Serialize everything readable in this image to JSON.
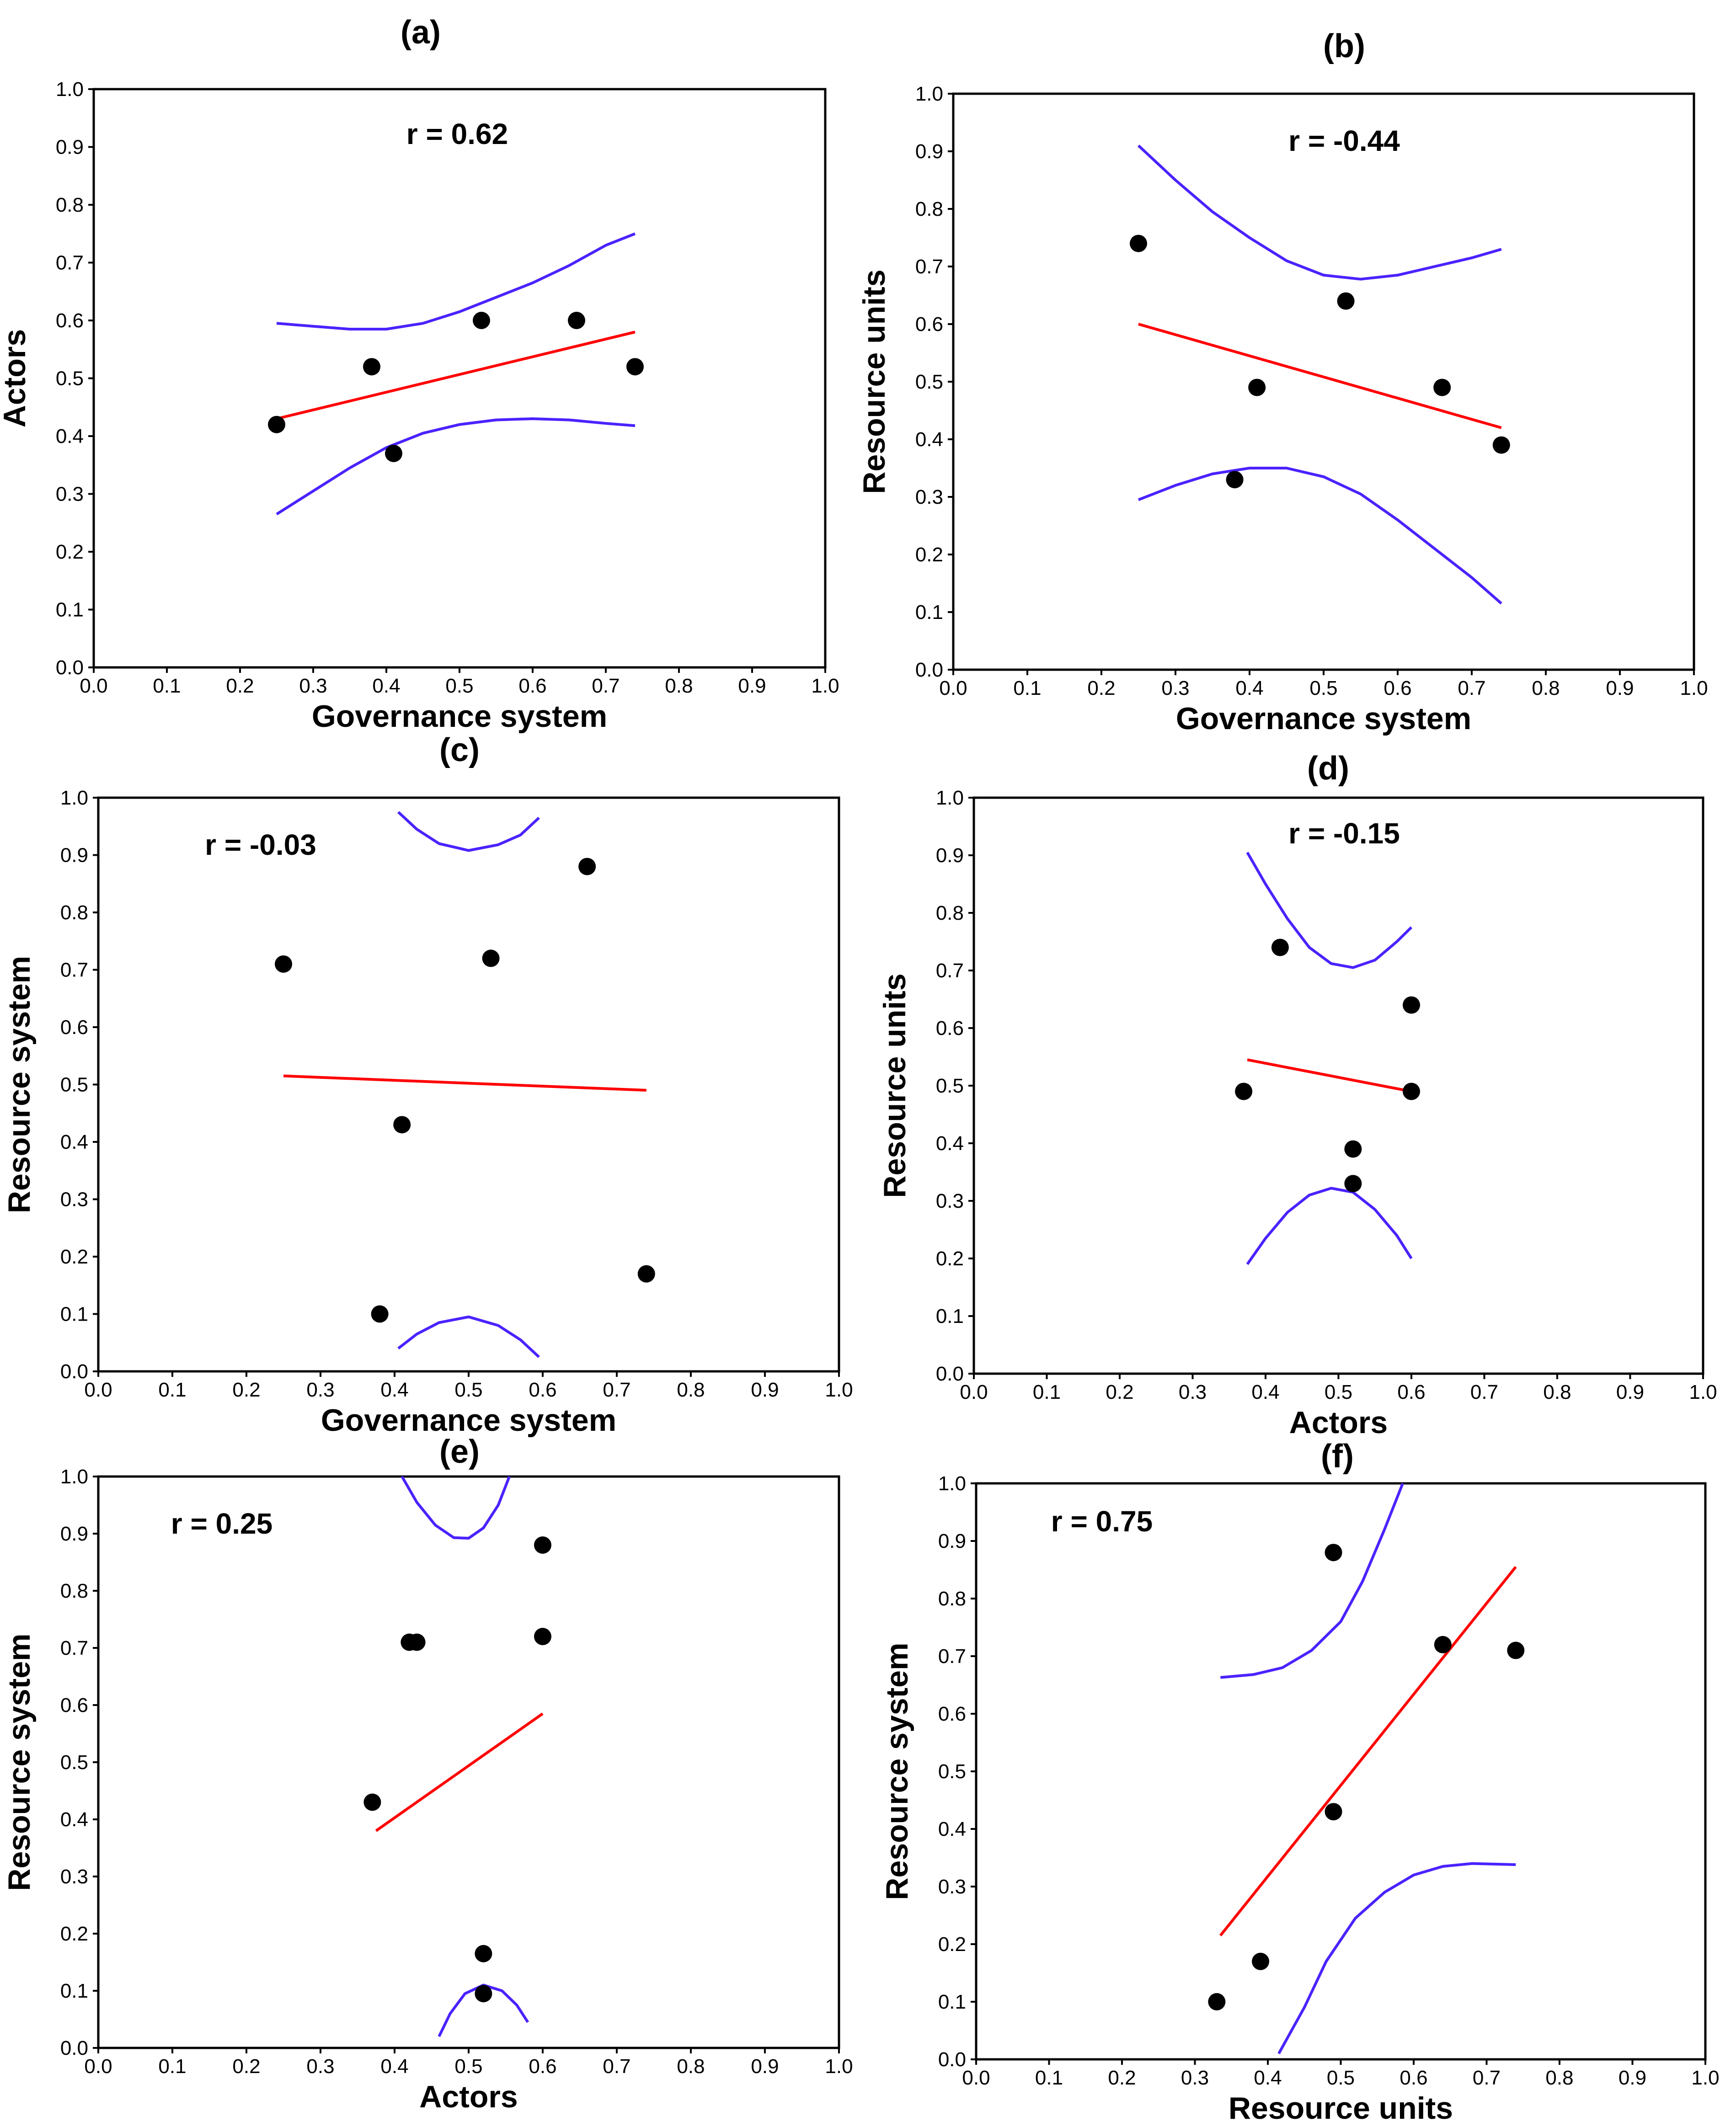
{
  "chart_data": [
    {
      "type": "scatter",
      "panel": "(a)",
      "xlabel": "Governance system",
      "ylabel": "Actors",
      "xlim": [
        0,
        1
      ],
      "ylim": [
        0,
        1
      ],
      "ticks": [
        "0.0",
        "0.1",
        "0.2",
        "0.3",
        "0.4",
        "0.5",
        "0.6",
        "0.7",
        "0.8",
        "0.9",
        "1.0"
      ],
      "r_text": "r = 0.62",
      "points": [
        [
          0.25,
          0.42
        ],
        [
          0.38,
          0.52
        ],
        [
          0.41,
          0.37
        ],
        [
          0.53,
          0.6
        ],
        [
          0.66,
          0.6
        ],
        [
          0.74,
          0.52
        ]
      ],
      "fit": [
        [
          0.25,
          0.43
        ],
        [
          0.74,
          0.58
        ]
      ],
      "ci_upper": [
        [
          0.25,
          0.595
        ],
        [
          0.3,
          0.59
        ],
        [
          0.35,
          0.585
        ],
        [
          0.4,
          0.585
        ],
        [
          0.45,
          0.595
        ],
        [
          0.5,
          0.615
        ],
        [
          0.55,
          0.64
        ],
        [
          0.6,
          0.665
        ],
        [
          0.65,
          0.695
        ],
        [
          0.7,
          0.73
        ],
        [
          0.74,
          0.75
        ]
      ],
      "ci_lower": [
        [
          0.25,
          0.265
        ],
        [
          0.3,
          0.305
        ],
        [
          0.35,
          0.345
        ],
        [
          0.4,
          0.38
        ],
        [
          0.45,
          0.405
        ],
        [
          0.5,
          0.42
        ],
        [
          0.55,
          0.428
        ],
        [
          0.6,
          0.43
        ],
        [
          0.65,
          0.428
        ],
        [
          0.7,
          0.422
        ],
        [
          0.74,
          0.418
        ]
      ]
    },
    {
      "type": "scatter",
      "panel": "(b)",
      "xlabel": "Governance system",
      "ylabel": "Resource units",
      "xlim": [
        0,
        1
      ],
      "ylim": [
        0,
        1
      ],
      "ticks": [
        "0.0",
        "0.1",
        "0.2",
        "0.3",
        "0.4",
        "0.5",
        "0.6",
        "0.7",
        "0.8",
        "0.9",
        "1.0"
      ],
      "r_text": "r = -0.44",
      "points": [
        [
          0.25,
          0.74
        ],
        [
          0.38,
          0.33
        ],
        [
          0.41,
          0.49
        ],
        [
          0.53,
          0.64
        ],
        [
          0.66,
          0.49
        ],
        [
          0.74,
          0.39
        ]
      ],
      "fit": [
        [
          0.25,
          0.6
        ],
        [
          0.74,
          0.42
        ]
      ],
      "ci_upper": [
        [
          0.25,
          0.91
        ],
        [
          0.3,
          0.85
        ],
        [
          0.35,
          0.795
        ],
        [
          0.4,
          0.75
        ],
        [
          0.45,
          0.71
        ],
        [
          0.5,
          0.685
        ],
        [
          0.55,
          0.678
        ],
        [
          0.6,
          0.685
        ],
        [
          0.65,
          0.7
        ],
        [
          0.7,
          0.715
        ],
        [
          0.74,
          0.73
        ]
      ],
      "ci_lower": [
        [
          0.25,
          0.295
        ],
        [
          0.3,
          0.32
        ],
        [
          0.35,
          0.34
        ],
        [
          0.4,
          0.35
        ],
        [
          0.45,
          0.35
        ],
        [
          0.5,
          0.335
        ],
        [
          0.55,
          0.305
        ],
        [
          0.6,
          0.26
        ],
        [
          0.65,
          0.21
        ],
        [
          0.7,
          0.16
        ],
        [
          0.74,
          0.115
        ]
      ]
    },
    {
      "type": "scatter",
      "panel": "(c)",
      "xlabel": "Governance system",
      "ylabel": "Resource system",
      "xlim": [
        0,
        1
      ],
      "ylim": [
        0,
        1
      ],
      "ticks": [
        "0.0",
        "0.1",
        "0.2",
        "0.3",
        "0.4",
        "0.5",
        "0.6",
        "0.7",
        "0.8",
        "0.9",
        "1.0"
      ],
      "r_text": "r = -0.03",
      "points": [
        [
          0.25,
          0.71
        ],
        [
          0.38,
          0.1
        ],
        [
          0.41,
          0.43
        ],
        [
          0.53,
          0.72
        ],
        [
          0.66,
          0.88
        ],
        [
          0.74,
          0.17
        ]
      ],
      "fit": [
        [
          0.25,
          0.515
        ],
        [
          0.74,
          0.49
        ]
      ],
      "ci_upper": [
        [
          0.405,
          0.975
        ],
        [
          0.43,
          0.945
        ],
        [
          0.46,
          0.92
        ],
        [
          0.5,
          0.908
        ],
        [
          0.54,
          0.918
        ],
        [
          0.57,
          0.935
        ],
        [
          0.595,
          0.965
        ]
      ],
      "ci_lower": [
        [
          0.405,
          0.04
        ],
        [
          0.43,
          0.065
        ],
        [
          0.46,
          0.085
        ],
        [
          0.5,
          0.095
        ],
        [
          0.54,
          0.08
        ],
        [
          0.57,
          0.055
        ],
        [
          0.595,
          0.025
        ]
      ]
    },
    {
      "type": "scatter",
      "panel": "(d)",
      "xlabel": "Actors",
      "ylabel": "Resource units",
      "xlim": [
        0,
        1
      ],
      "ylim": [
        0,
        1
      ],
      "ticks": [
        "0.0",
        "0.1",
        "0.2",
        "0.3",
        "0.4",
        "0.5",
        "0.6",
        "0.7",
        "0.8",
        "0.9",
        "1.0"
      ],
      "r_text": "r = -0.15",
      "points": [
        [
          0.37,
          0.49
        ],
        [
          0.42,
          0.74
        ],
        [
          0.52,
          0.39
        ],
        [
          0.52,
          0.33
        ],
        [
          0.6,
          0.64
        ],
        [
          0.6,
          0.49
        ]
      ],
      "fit": [
        [
          0.375,
          0.545
        ],
        [
          0.6,
          0.49
        ]
      ],
      "ci_upper": [
        [
          0.375,
          0.905
        ],
        [
          0.4,
          0.85
        ],
        [
          0.43,
          0.79
        ],
        [
          0.46,
          0.74
        ],
        [
          0.49,
          0.712
        ],
        [
          0.52,
          0.705
        ],
        [
          0.55,
          0.718
        ],
        [
          0.58,
          0.75
        ],
        [
          0.6,
          0.775
        ]
      ],
      "ci_lower": [
        [
          0.375,
          0.19
        ],
        [
          0.4,
          0.235
        ],
        [
          0.43,
          0.28
        ],
        [
          0.46,
          0.31
        ],
        [
          0.49,
          0.322
        ],
        [
          0.52,
          0.315
        ],
        [
          0.55,
          0.285
        ],
        [
          0.58,
          0.24
        ],
        [
          0.6,
          0.2
        ]
      ]
    },
    {
      "type": "scatter",
      "panel": "(e)",
      "xlabel": "Actors",
      "ylabel": "Resource system",
      "xlim": [
        0,
        1
      ],
      "ylim": [
        0,
        1
      ],
      "ticks": [
        "0.0",
        "0.1",
        "0.2",
        "0.3",
        "0.4",
        "0.5",
        "0.6",
        "0.7",
        "0.8",
        "0.9",
        "1.0"
      ],
      "r_text": "r = 0.25",
      "points": [
        [
          0.37,
          0.43
        ],
        [
          0.42,
          0.71
        ],
        [
          0.43,
          0.71
        ],
        [
          0.52,
          0.165
        ],
        [
          0.52,
          0.095
        ],
        [
          0.6,
          0.88
        ],
        [
          0.6,
          0.72
        ]
      ],
      "fit": [
        [
          0.375,
          0.38
        ],
        [
          0.6,
          0.585
        ]
      ],
      "ci_upper": [
        [
          0.41,
          1.0
        ],
        [
          0.43,
          0.955
        ],
        [
          0.455,
          0.915
        ],
        [
          0.48,
          0.893
        ],
        [
          0.5,
          0.892
        ],
        [
          0.52,
          0.91
        ],
        [
          0.54,
          0.95
        ],
        [
          0.555,
          1.0
        ]
      ],
      "ci_lower": [
        [
          0.46,
          0.02
        ],
        [
          0.475,
          0.06
        ],
        [
          0.495,
          0.095
        ],
        [
          0.52,
          0.11
        ],
        [
          0.545,
          0.1
        ],
        [
          0.565,
          0.075
        ],
        [
          0.58,
          0.045
        ]
      ]
    },
    {
      "type": "scatter",
      "panel": "(f)",
      "xlabel": "Resource units",
      "ylabel": "Resource system",
      "xlim": [
        0,
        1
      ],
      "ylim": [
        0,
        1
      ],
      "ticks": [
        "0.0",
        "0.1",
        "0.2",
        "0.3",
        "0.4",
        "0.5",
        "0.6",
        "0.7",
        "0.8",
        "0.9",
        "1.0"
      ],
      "r_text": "r = 0.75",
      "points": [
        [
          0.33,
          0.1
        ],
        [
          0.39,
          0.17
        ],
        [
          0.49,
          0.43
        ],
        [
          0.49,
          0.88
        ],
        [
          0.64,
          0.72
        ],
        [
          0.74,
          0.71
        ]
      ],
      "fit": [
        [
          0.335,
          0.215
        ],
        [
          0.74,
          0.855
        ]
      ],
      "ci_upper": [
        [
          0.335,
          0.663
        ],
        [
          0.38,
          0.668
        ],
        [
          0.42,
          0.68
        ],
        [
          0.46,
          0.71
        ],
        [
          0.5,
          0.76
        ],
        [
          0.53,
          0.83
        ],
        [
          0.56,
          0.92
        ],
        [
          0.585,
          1.0
        ]
      ],
      "ci_lower": [
        [
          0.415,
          0.01
        ],
        [
          0.45,
          0.09
        ],
        [
          0.48,
          0.17
        ],
        [
          0.52,
          0.245
        ],
        [
          0.56,
          0.29
        ],
        [
          0.6,
          0.32
        ],
        [
          0.64,
          0.335
        ],
        [
          0.68,
          0.34
        ],
        [
          0.74,
          0.338
        ]
      ]
    }
  ],
  "colors": {
    "fit_line": "#ff0000",
    "ci_band": "#4b22ff",
    "point": "#000000",
    "axis": "#000000"
  }
}
